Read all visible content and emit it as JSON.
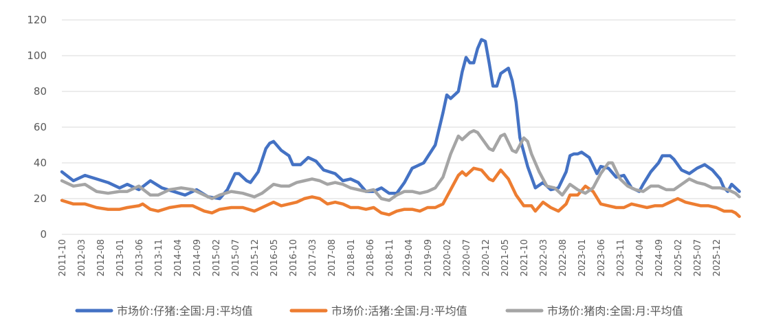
{
  "chart_data": {
    "type": "line",
    "title": "",
    "xlabel": "",
    "ylabel": "",
    "ylim": [
      0,
      120
    ],
    "yticks": [
      0,
      20,
      40,
      60,
      80,
      100,
      120
    ],
    "grid": "horizontal",
    "legend": "bottom",
    "x_start": "2011-10",
    "x_end": "2026-05",
    "xtick_labels": [
      "2011-10",
      "2012-03",
      "2012-08",
      "2013-01",
      "2013-06",
      "2013-11",
      "2014-04",
      "2014-09",
      "2015-02",
      "2015-07",
      "2015-12",
      "2016-05",
      "2016-10",
      "2017-03",
      "2017-08",
      "2018-01",
      "2018-06",
      "2018-11",
      "2019-04",
      "2019-09",
      "2020-02",
      "2020-07",
      "2020-12",
      "2021-05",
      "2021-10",
      "2022-03",
      "2022-08",
      "2023-01",
      "2023-06",
      "2023-11",
      "2024-04",
      "2024-09",
      "2025-02",
      "2025-07",
      "2025-12"
    ],
    "series": [
      {
        "name": "市场价:仔猪:全国:月:平均值",
        "color": "#4472C4",
        "points": [
          [
            "2011-10",
            35
          ],
          [
            "2012-01",
            30
          ],
          [
            "2012-04",
            33
          ],
          [
            "2012-07",
            31
          ],
          [
            "2012-10",
            29
          ],
          [
            "2013-01",
            26
          ],
          [
            "2013-03",
            28
          ],
          [
            "2013-06",
            25
          ],
          [
            "2013-09",
            30
          ],
          [
            "2013-12",
            26
          ],
          [
            "2014-03",
            24
          ],
          [
            "2014-06",
            22
          ],
          [
            "2014-09",
            25
          ],
          [
            "2014-12",
            21
          ],
          [
            "2015-03",
            20
          ],
          [
            "2015-05",
            25
          ],
          [
            "2015-07",
            34
          ],
          [
            "2015-08",
            34
          ],
          [
            "2015-10",
            30
          ],
          [
            "2015-11",
            29
          ],
          [
            "2016-01",
            35
          ],
          [
            "2016-03",
            48
          ],
          [
            "2016-04",
            51
          ],
          [
            "2016-05",
            52
          ],
          [
            "2016-07",
            47
          ],
          [
            "2016-09",
            44
          ],
          [
            "2016-10",
            39
          ],
          [
            "2016-12",
            39
          ],
          [
            "2017-02",
            43
          ],
          [
            "2017-04",
            41
          ],
          [
            "2017-06",
            36
          ],
          [
            "2017-09",
            34
          ],
          [
            "2017-11",
            30
          ],
          [
            "2018-01",
            31
          ],
          [
            "2018-03",
            29
          ],
          [
            "2018-05",
            24
          ],
          [
            "2018-07",
            24
          ],
          [
            "2018-09",
            26
          ],
          [
            "2018-11",
            23
          ],
          [
            "2019-01",
            23
          ],
          [
            "2019-03",
            29
          ],
          [
            "2019-05",
            37
          ],
          [
            "2019-08",
            40
          ],
          [
            "2019-11",
            50
          ],
          [
            "2020-01",
            68
          ],
          [
            "2020-02",
            78
          ],
          [
            "2020-03",
            76
          ],
          [
            "2020-05",
            80
          ],
          [
            "2020-06",
            91
          ],
          [
            "2020-07",
            99
          ],
          [
            "2020-08",
            96
          ],
          [
            "2020-09",
            96
          ],
          [
            "2020-10",
            104
          ],
          [
            "2020-11",
            109
          ],
          [
            "2020-12",
            108
          ],
          [
            "2021-01",
            96
          ],
          [
            "2021-02",
            83
          ],
          [
            "2021-03",
            83
          ],
          [
            "2021-04",
            90
          ],
          [
            "2021-06",
            93
          ],
          [
            "2021-07",
            86
          ],
          [
            "2021-08",
            74
          ],
          [
            "2021-09",
            54
          ],
          [
            "2021-11",
            38
          ],
          [
            "2022-01",
            26
          ],
          [
            "2022-03",
            29
          ],
          [
            "2022-05",
            25
          ],
          [
            "2022-07",
            26
          ],
          [
            "2022-09",
            35
          ],
          [
            "2022-10",
            44
          ],
          [
            "2022-11",
            45
          ],
          [
            "2022-12",
            45
          ],
          [
            "2023-01",
            46
          ],
          [
            "2023-03",
            43
          ],
          [
            "2023-05",
            34
          ],
          [
            "2023-06",
            38
          ],
          [
            "2023-08",
            37
          ],
          [
            "2023-10",
            32
          ],
          [
            "2023-12",
            33
          ],
          [
            "2024-02",
            26
          ],
          [
            "2024-04",
            24
          ],
          [
            "2024-05",
            28
          ],
          [
            "2024-07",
            35
          ],
          [
            "2024-09",
            40
          ],
          [
            "2024-10",
            44
          ],
          [
            "2024-12",
            44
          ],
          [
            "2025-01",
            42
          ],
          [
            "2025-03",
            36
          ],
          [
            "2025-05",
            34
          ],
          [
            "2025-07",
            37
          ],
          [
            "2025-09",
            39
          ],
          [
            "2025-11",
            36
          ],
          [
            "2026-01",
            31
          ],
          [
            "2026-02",
            26
          ],
          [
            "2026-03",
            24
          ],
          [
            "2026-04",
            28
          ],
          [
            "2026-05",
            26
          ],
          [
            "2026-06",
            24
          ]
        ]
      },
      {
        "name": "市场价:活猪:全国:月:平均值",
        "color": "#ED7D31",
        "points": [
          [
            "2011-10",
            19
          ],
          [
            "2012-01",
            17
          ],
          [
            "2012-04",
            17
          ],
          [
            "2012-07",
            15
          ],
          [
            "2012-10",
            14
          ],
          [
            "2013-01",
            14
          ],
          [
            "2013-03",
            15
          ],
          [
            "2013-06",
            16
          ],
          [
            "2013-07",
            17
          ],
          [
            "2013-09",
            14
          ],
          [
            "2013-11",
            13
          ],
          [
            "2014-02",
            15
          ],
          [
            "2014-05",
            16
          ],
          [
            "2014-08",
            16
          ],
          [
            "2014-11",
            13
          ],
          [
            "2015-01",
            12
          ],
          [
            "2015-03",
            14
          ],
          [
            "2015-06",
            15
          ],
          [
            "2015-09",
            15
          ],
          [
            "2015-12",
            13
          ],
          [
            "2016-02",
            15
          ],
          [
            "2016-05",
            18
          ],
          [
            "2016-07",
            16
          ],
          [
            "2016-09",
            17
          ],
          [
            "2016-11",
            18
          ],
          [
            "2017-01",
            20
          ],
          [
            "2017-03",
            21
          ],
          [
            "2017-05",
            20
          ],
          [
            "2017-07",
            17
          ],
          [
            "2017-09",
            18
          ],
          [
            "2017-11",
            17
          ],
          [
            "2018-01",
            15
          ],
          [
            "2018-03",
            15
          ],
          [
            "2018-05",
            14
          ],
          [
            "2018-07",
            15
          ],
          [
            "2018-09",
            12
          ],
          [
            "2018-11",
            11
          ],
          [
            "2019-01",
            13
          ],
          [
            "2019-03",
            14
          ],
          [
            "2019-05",
            14
          ],
          [
            "2019-07",
            13
          ],
          [
            "2019-09",
            15
          ],
          [
            "2019-11",
            15
          ],
          [
            "2020-01",
            17
          ],
          [
            "2020-03",
            25
          ],
          [
            "2020-05",
            33
          ],
          [
            "2020-06",
            35
          ],
          [
            "2020-07",
            33
          ],
          [
            "2020-09",
            37
          ],
          [
            "2020-11",
            36
          ],
          [
            "2021-01",
            31
          ],
          [
            "2021-02",
            30
          ],
          [
            "2021-04",
            36
          ],
          [
            "2021-06",
            31
          ],
          [
            "2021-08",
            22
          ],
          [
            "2021-10",
            16
          ],
          [
            "2021-12",
            16
          ],
          [
            "2022-01",
            13
          ],
          [
            "2022-03",
            18
          ],
          [
            "2022-05",
            15
          ],
          [
            "2022-07",
            13
          ],
          [
            "2022-09",
            17
          ],
          [
            "2022-10",
            22
          ],
          [
            "2022-12",
            22
          ],
          [
            "2023-02",
            27
          ],
          [
            "2023-04",
            24
          ],
          [
            "2023-06",
            17
          ],
          [
            "2023-08",
            16
          ],
          [
            "2023-10",
            15
          ],
          [
            "2023-12",
            15
          ],
          [
            "2024-02",
            17
          ],
          [
            "2024-04",
            16
          ],
          [
            "2024-06",
            15
          ],
          [
            "2024-08",
            16
          ],
          [
            "2024-10",
            16
          ],
          [
            "2024-12",
            18
          ],
          [
            "2025-02",
            20
          ],
          [
            "2025-04",
            18
          ],
          [
            "2025-06",
            17
          ],
          [
            "2025-08",
            16
          ],
          [
            "2025-10",
            16
          ],
          [
            "2025-12",
            15
          ],
          [
            "2026-02",
            13
          ],
          [
            "2026-04",
            13
          ],
          [
            "2026-05",
            12
          ],
          [
            "2026-06",
            10
          ]
        ]
      },
      {
        "name": "市场价:猪肉:全国:月:平均值",
        "color": "#A5A5A5",
        "points": [
          [
            "2011-10",
            30
          ],
          [
            "2012-01",
            27
          ],
          [
            "2012-04",
            28
          ],
          [
            "2012-07",
            24
          ],
          [
            "2012-10",
            23
          ],
          [
            "2013-01",
            24
          ],
          [
            "2013-03",
            24
          ],
          [
            "2013-06",
            27
          ],
          [
            "2013-09",
            22
          ],
          [
            "2013-11",
            22
          ],
          [
            "2014-02",
            25
          ],
          [
            "2014-05",
            26
          ],
          [
            "2014-08",
            25
          ],
          [
            "2014-11",
            22
          ],
          [
            "2015-01",
            20
          ],
          [
            "2015-03",
            22
          ],
          [
            "2015-06",
            24
          ],
          [
            "2015-09",
            23
          ],
          [
            "2015-12",
            21
          ],
          [
            "2016-02",
            23
          ],
          [
            "2016-05",
            28
          ],
          [
            "2016-07",
            27
          ],
          [
            "2016-09",
            27
          ],
          [
            "2016-11",
            29
          ],
          [
            "2017-01",
            30
          ],
          [
            "2017-03",
            31
          ],
          [
            "2017-05",
            30
          ],
          [
            "2017-07",
            28
          ],
          [
            "2017-09",
            29
          ],
          [
            "2017-11",
            28
          ],
          [
            "2018-01",
            26
          ],
          [
            "2018-03",
            25
          ],
          [
            "2018-05",
            24
          ],
          [
            "2018-07",
            25
          ],
          [
            "2018-09",
            20
          ],
          [
            "2018-11",
            19
          ],
          [
            "2019-01",
            22
          ],
          [
            "2019-03",
            24
          ],
          [
            "2019-05",
            24
          ],
          [
            "2019-07",
            23
          ],
          [
            "2019-09",
            24
          ],
          [
            "2019-11",
            26
          ],
          [
            "2020-01",
            32
          ],
          [
            "2020-03",
            45
          ],
          [
            "2020-05",
            55
          ],
          [
            "2020-06",
            53
          ],
          [
            "2020-08",
            57
          ],
          [
            "2020-09",
            58
          ],
          [
            "2020-10",
            57
          ],
          [
            "2020-11",
            54
          ],
          [
            "2021-01",
            48
          ],
          [
            "2021-02",
            47
          ],
          [
            "2021-04",
            55
          ],
          [
            "2021-05",
            56
          ],
          [
            "2021-07",
            47
          ],
          [
            "2021-08",
            46
          ],
          [
            "2021-10",
            54
          ],
          [
            "2021-11",
            52
          ],
          [
            "2021-12",
            45
          ],
          [
            "2022-02",
            35
          ],
          [
            "2022-04",
            27
          ],
          [
            "2022-06",
            26
          ],
          [
            "2022-08",
            22
          ],
          [
            "2022-10",
            28
          ],
          [
            "2022-12",
            25
          ],
          [
            "2023-02",
            23
          ],
          [
            "2023-04",
            26
          ],
          [
            "2023-06",
            34
          ],
          [
            "2023-08",
            40
          ],
          [
            "2023-09",
            40
          ],
          [
            "2023-11",
            31
          ],
          [
            "2024-01",
            27
          ],
          [
            "2024-03",
            25
          ],
          [
            "2024-05",
            24
          ],
          [
            "2024-07",
            27
          ],
          [
            "2024-09",
            27
          ],
          [
            "2024-11",
            25
          ],
          [
            "2025-01",
            25
          ],
          [
            "2025-03",
            28
          ],
          [
            "2025-05",
            31
          ],
          [
            "2025-07",
            29
          ],
          [
            "2025-09",
            28
          ],
          [
            "2025-11",
            26
          ],
          [
            "2026-01",
            26
          ],
          [
            "2026-03",
            25
          ],
          [
            "2026-04",
            24
          ],
          [
            "2026-05",
            23
          ],
          [
            "2026-06",
            21
          ]
        ]
      }
    ]
  }
}
